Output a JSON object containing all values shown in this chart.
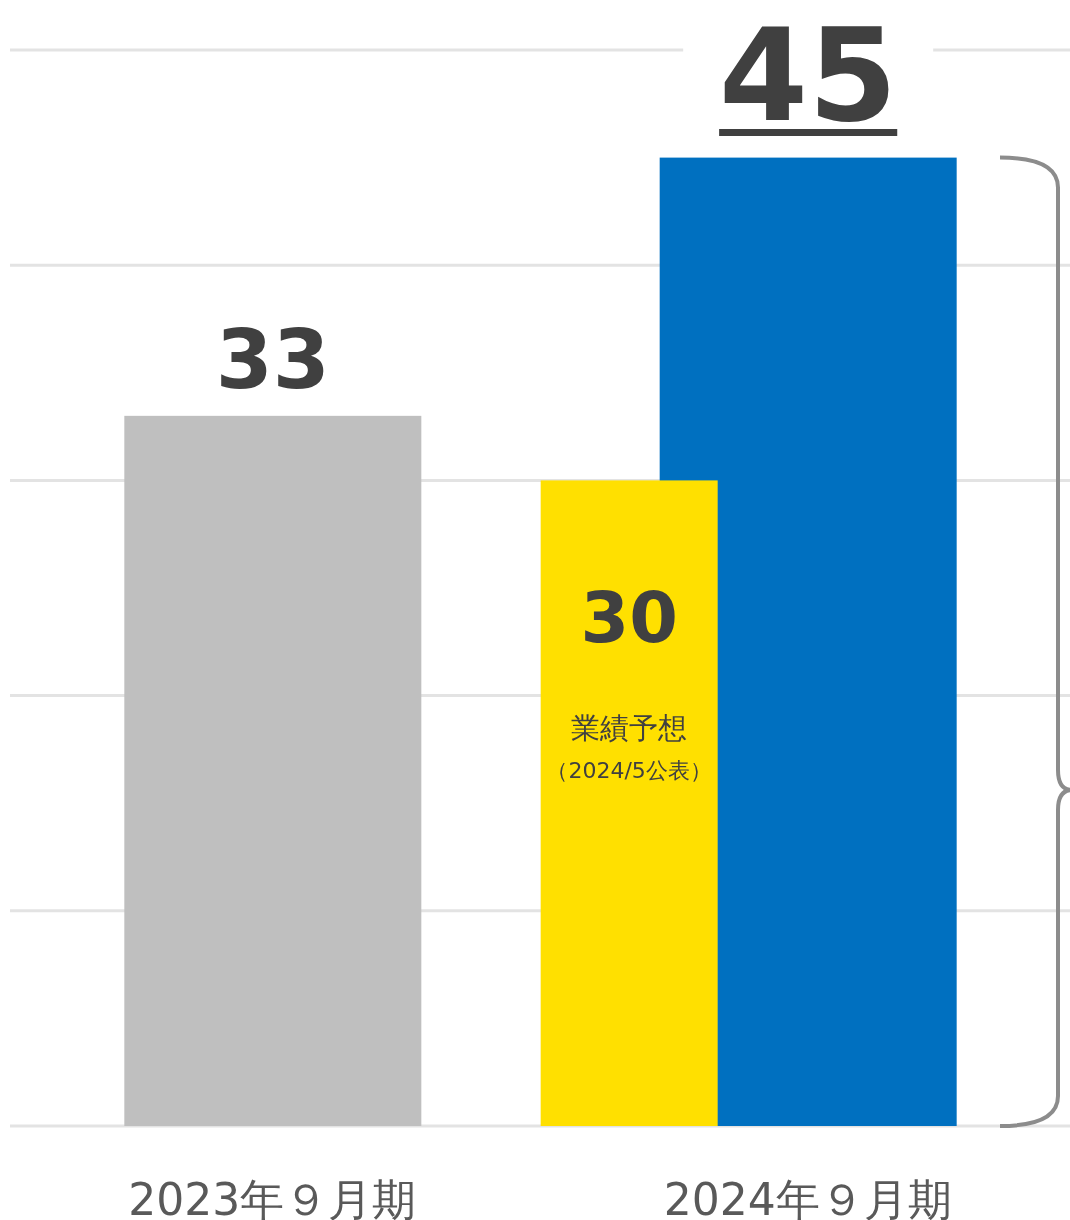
{
  "chart_data": {
    "type": "bar",
    "categories": [
      "2023年９月期",
      "2024年９月期"
    ],
    "series": [
      {
        "colors": [
          "#bfbfbf",
          "#0070c0"
        ],
        "values": [
          33,
          45
        ]
      },
      {
        "color": "#ffe000",
        "values": [
          null,
          30
        ]
      }
    ],
    "ylim": [
      0,
      50
    ],
    "yticks": [
      {
        "value": 0,
        "label": null
      },
      {
        "value": 10,
        "label": null
      },
      {
        "value": 20,
        "label": null
      },
      {
        "value": 30,
        "label": null
      },
      {
        "value": 40,
        "label": null
      },
      {
        "value": 50,
        "label": null
      }
    ],
    "tick_labels": "x",
    "grid": "y",
    "data_labels": true,
    "annotations": [
      "業績予想",
      "（2024/5公表）"
    ]
  }
}
